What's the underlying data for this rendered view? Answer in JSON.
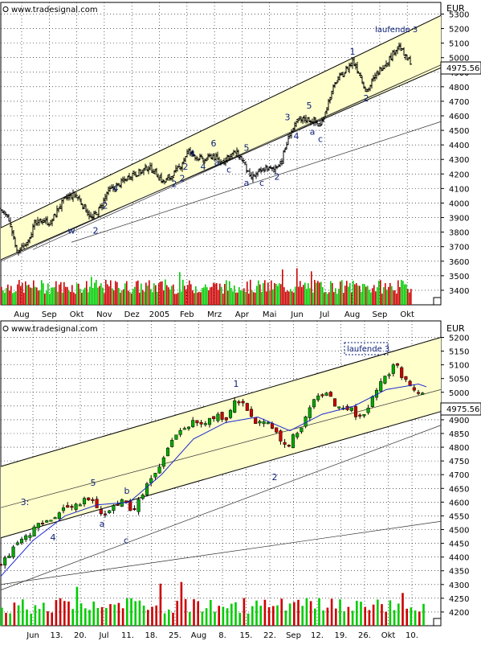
{
  "panels": [
    {
      "watermark": "www.tradesignal.com",
      "currency": "EUR",
      "last_price": "4975.56",
      "annotation": "laufende 3"
    },
    {
      "watermark": "www.tradesignal.com",
      "currency": "EUR",
      "last_price": "4975.56",
      "annotation": "laufende 3"
    }
  ],
  "colors": {
    "background": "#ffffff",
    "channel_fill": "#ffffcc",
    "candle_up": "#00aa00",
    "candle_down": "#cc0000",
    "wick": "#000000",
    "wave_labels": "#0a1e78",
    "moving_average": "#1e2ad0",
    "volume_up": "#00cc00",
    "volume_down": "#cc0000",
    "grid": "#000000"
  },
  "chart_data": [
    {
      "type": "candlestick",
      "title": "",
      "ylabel": "EUR",
      "ylim": [
        3300,
        5380
      ],
      "yticks": [
        3400,
        3500,
        3600,
        3700,
        3800,
        3900,
        4000,
        4100,
        4200,
        4300,
        4400,
        4500,
        4600,
        4700,
        4800,
        4900,
        5000,
        5100,
        5200,
        5300
      ],
      "xlabels": [
        "Aug",
        "Sep",
        "Okt",
        "Nov",
        "Dez",
        "2005",
        "Feb",
        "Mrz",
        "Apr",
        "Mai",
        "Jun",
        "Jul",
        "Aug",
        "Sep",
        "Okt"
      ],
      "grid": true,
      "last_value": 4975.56,
      "price_path": [
        [
          0,
          3950
        ],
        [
          10,
          3890
        ],
        [
          20,
          3660
        ],
        [
          30,
          3710
        ],
        [
          42,
          3850
        ],
        [
          52,
          3880
        ],
        [
          62,
          3860
        ],
        [
          72,
          3970
        ],
        [
          82,
          4040
        ],
        [
          93,
          4060
        ],
        [
          103,
          3980
        ],
        [
          113,
          3890
        ],
        [
          123,
          3960
        ],
        [
          133,
          4080
        ],
        [
          143,
          4110
        ],
        [
          153,
          4150
        ],
        [
          163,
          4200
        ],
        [
          173,
          4210
        ],
        [
          183,
          4250
        ],
        [
          193,
          4210
        ],
        [
          203,
          4140
        ],
        [
          213,
          4190
        ],
        [
          223,
          4250
        ],
        [
          233,
          4360
        ],
        [
          243,
          4320
        ],
        [
          253,
          4290
        ],
        [
          263,
          4330
        ],
        [
          273,
          4280
        ],
        [
          283,
          4320
        ],
        [
          293,
          4350
        ],
        [
          303,
          4280
        ],
        [
          310,
          4170
        ],
        [
          320,
          4200
        ],
        [
          330,
          4240
        ],
        [
          340,
          4230
        ],
        [
          350,
          4300
        ],
        [
          360,
          4480
        ],
        [
          370,
          4560
        ],
        [
          380,
          4580
        ],
        [
          390,
          4560
        ],
        [
          398,
          4530
        ],
        [
          408,
          4700
        ],
        [
          418,
          4840
        ],
        [
          428,
          4900
        ],
        [
          438,
          4980
        ],
        [
          448,
          4880
        ],
        [
          455,
          4760
        ],
        [
          465,
          4860
        ],
        [
          475,
          4940
        ],
        [
          485,
          5000
        ],
        [
          495,
          5090
        ],
        [
          505,
          4990
        ],
        [
          510,
          4975
        ]
      ],
      "volume_ylim": [
        0,
        100
      ],
      "wave_labels": [
        {
          "text": "1",
          "x": 438,
          "y": 5020
        },
        {
          "text": "2",
          "x": 455,
          "y": 4700
        },
        {
          "text": "3",
          "x": 357,
          "y": 4570
        },
        {
          "text": "4",
          "x": 368,
          "y": 4440
        },
        {
          "text": "5",
          "x": 384,
          "y": 4650
        },
        {
          "text": "a",
          "x": 388,
          "y": 4470
        },
        {
          "text": "c",
          "x": 398,
          "y": 4420
        },
        {
          "text": "w",
          "x": 88,
          "y": 3790
        },
        {
          "text": "2",
          "x": 118,
          "y": 3790
        },
        {
          "text": "2",
          "x": 130,
          "y": 3960
        },
        {
          "text": "4",
          "x": 143,
          "y": 4080
        },
        {
          "text": "2",
          "x": 216,
          "y": 4110
        },
        {
          "text": "2",
          "x": 226,
          "y": 4150
        },
        {
          "text": "2",
          "x": 230,
          "y": 4230
        },
        {
          "text": "4",
          "x": 238,
          "y": 4320
        },
        {
          "text": "4",
          "x": 252,
          "y": 4230
        },
        {
          "text": "6",
          "x": 265,
          "y": 4390
        },
        {
          "text": "a",
          "x": 269,
          "y": 4260
        },
        {
          "text": "c",
          "x": 284,
          "y": 4210
        },
        {
          "text": "5",
          "x": 306,
          "y": 4360
        },
        {
          "text": "a",
          "x": 306,
          "y": 4120
        },
        {
          "text": "c",
          "x": 325,
          "y": 4120
        },
        {
          "text": "2",
          "x": 344,
          "y": 4160
        }
      ],
      "lines": [
        {
          "kind": "channel-upper",
          "from": [
            0,
            3830
          ],
          "to": [
            548,
            5290
          ]
        },
        {
          "kind": "channel-lower",
          "from": [
            0,
            3610
          ],
          "to": [
            548,
            4930
          ]
        },
        {
          "kind": "support",
          "from": [
            40,
            3680
          ],
          "to": [
            548,
            4950
          ]
        },
        {
          "kind": "long-trend",
          "from": [
            88,
            3730
          ],
          "to": [
            548,
            4560
          ]
        },
        {
          "kind": "trend",
          "from": [
            0,
            3600
          ],
          "to": [
            548,
            4950
          ]
        }
      ]
    },
    {
      "type": "candlestick",
      "title": "",
      "ylabel": "EUR",
      "ylim": [
        4150,
        5260
      ],
      "yticks": [
        4150,
        4200,
        4250,
        4300,
        4350,
        4400,
        4450,
        4500,
        4550,
        4600,
        4650,
        4700,
        4750,
        4800,
        4850,
        4900,
        4950,
        5000,
        5050,
        5100,
        5150,
        5200
      ],
      "xlabels": [
        "Jun",
        "13.",
        "20.",
        "Jul",
        "11.",
        "18.",
        "25.",
        "Aug",
        "8.",
        "15.",
        "22.",
        "Sep",
        "12.",
        "19.",
        "26.",
        "Okt",
        "10."
      ],
      "grid": true,
      "last_value": 4975.56,
      "close_path": [
        [
          0,
          4380
        ],
        [
          10,
          4410
        ],
        [
          20,
          4440
        ],
        [
          30,
          4470
        ],
        [
          40,
          4500
        ],
        [
          50,
          4520
        ],
        [
          60,
          4530
        ],
        [
          70,
          4560
        ],
        [
          80,
          4580
        ],
        [
          90,
          4590
        ],
        [
          100,
          4600
        ],
        [
          110,
          4610
        ],
        [
          120,
          4580
        ],
        [
          128,
          4550
        ],
        [
          136,
          4580
        ],
        [
          145,
          4590
        ],
        [
          155,
          4610
        ],
        [
          163,
          4560
        ],
        [
          170,
          4600
        ],
        [
          180,
          4650
        ],
        [
          190,
          4700
        ],
        [
          200,
          4740
        ],
        [
          210,
          4810
        ],
        [
          220,
          4850
        ],
        [
          230,
          4880
        ],
        [
          240,
          4890
        ],
        [
          250,
          4880
        ],
        [
          260,
          4900
        ],
        [
          270,
          4920
        ],
        [
          280,
          4900
        ],
        [
          290,
          4970
        ],
        [
          300,
          4960
        ],
        [
          310,
          4920
        ],
        [
          320,
          4880
        ],
        [
          330,
          4910
        ],
        [
          340,
          4870
        ],
        [
          350,
          4800
        ],
        [
          358,
          4800
        ],
        [
          365,
          4850
        ],
        [
          375,
          4870
        ],
        [
          385,
          4950
        ],
        [
          395,
          4980
        ],
        [
          405,
          5010
        ],
        [
          415,
          4960
        ],
        [
          425,
          4930
        ],
        [
          435,
          4950
        ],
        [
          445,
          4900
        ],
        [
          455,
          4930
        ],
        [
          465,
          4990
        ],
        [
          475,
          5040
        ],
        [
          485,
          5080
        ],
        [
          492,
          5120
        ],
        [
          500,
          5050
        ],
        [
          510,
          5030
        ],
        [
          520,
          5000
        ],
        [
          530,
          4975
        ]
      ],
      "moving_average": [
        [
          0,
          4330
        ],
        [
          40,
          4460
        ],
        [
          80,
          4550
        ],
        [
          120,
          4590
        ],
        [
          160,
          4600
        ],
        [
          200,
          4700
        ],
        [
          240,
          4830
        ],
        [
          280,
          4890
        ],
        [
          320,
          4910
        ],
        [
          360,
          4860
        ],
        [
          400,
          4920
        ],
        [
          440,
          4950
        ],
        [
          480,
          5010
        ],
        [
          520,
          5030
        ],
        [
          530,
          5020
        ]
      ],
      "volume_ylim": [
        0,
        100
      ],
      "wave_labels": [
        {
          "text": "1",
          "x": 293,
          "y": 5020
        },
        {
          "text": "2",
          "x": 341,
          "y": 4680
        },
        {
          "text": "3:",
          "x": 30,
          "y": 4590
        },
        {
          "text": "4",
          "x": 65,
          "y": 4460
        },
        {
          "text": "5",
          "x": 115,
          "y": 4660
        },
        {
          "text": "a",
          "x": 126,
          "y": 4510
        },
        {
          "text": "b",
          "x": 157,
          "y": 4630
        },
        {
          "text": "c",
          "x": 156,
          "y": 4450
        }
      ],
      "lines": [
        {
          "kind": "channel-upper",
          "from": [
            0,
            4730
          ],
          "to": [
            548,
            5200
          ]
        },
        {
          "kind": "channel-lower",
          "from": [
            0,
            4470
          ],
          "to": [
            548,
            4930
          ]
        },
        {
          "kind": "support",
          "from": [
            0,
            4280
          ],
          "to": [
            548,
            4880
          ]
        },
        {
          "kind": "long-trend",
          "from": [
            0,
            4300
          ],
          "to": [
            548,
            4530
          ]
        },
        {
          "kind": "mid-line",
          "from": [
            0,
            4580
          ],
          "to": [
            548,
            5010
          ]
        }
      ]
    }
  ]
}
